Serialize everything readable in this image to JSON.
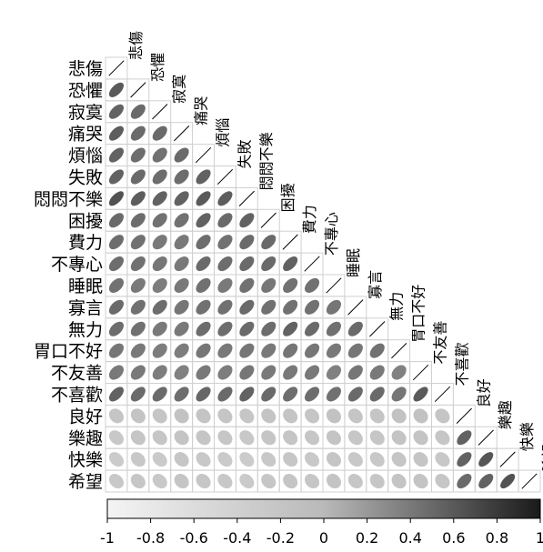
{
  "chart_data": {
    "type": "heatmap",
    "subtype": "correlation-ellipse-lower-triangle",
    "variables": [
      "悲傷",
      "恐懼",
      "寂寞",
      "痛哭",
      "煩惱",
      "失敗",
      "悶悶不樂",
      "困擾",
      "費力",
      "不專心",
      "睡眠",
      "寡言",
      "無力",
      "胃口不好",
      "不友善",
      "不喜歡",
      "良好",
      "樂趣",
      "快樂",
      "希望"
    ],
    "correlations": [
      [
        1
      ],
      [
        0.6,
        1
      ],
      [
        0.55,
        0.5,
        1
      ],
      [
        0.58,
        0.5,
        0.5,
        1
      ],
      [
        0.55,
        0.48,
        0.45,
        0.5,
        1
      ],
      [
        0.55,
        0.5,
        0.48,
        0.48,
        0.55,
        1
      ],
      [
        0.65,
        0.58,
        0.55,
        0.55,
        0.6,
        0.58,
        1
      ],
      [
        0.5,
        0.48,
        0.45,
        0.45,
        0.55,
        0.5,
        0.55,
        1
      ],
      [
        0.48,
        0.45,
        0.4,
        0.4,
        0.48,
        0.45,
        0.5,
        0.5,
        1
      ],
      [
        0.48,
        0.45,
        0.42,
        0.4,
        0.5,
        0.48,
        0.5,
        0.5,
        0.55,
        1
      ],
      [
        0.45,
        0.4,
        0.38,
        0.4,
        0.45,
        0.4,
        0.45,
        0.42,
        0.45,
        0.45,
        1
      ],
      [
        0.5,
        0.45,
        0.48,
        0.42,
        0.45,
        0.45,
        0.5,
        0.45,
        0.45,
        0.45,
        0.42,
        1
      ],
      [
        0.48,
        0.45,
        0.4,
        0.4,
        0.48,
        0.48,
        0.5,
        0.48,
        0.55,
        0.5,
        0.45,
        0.5,
        1
      ],
      [
        0.42,
        0.4,
        0.38,
        0.38,
        0.42,
        0.4,
        0.42,
        0.4,
        0.42,
        0.42,
        0.4,
        0.42,
        0.45,
        1
      ],
      [
        0.4,
        0.4,
        0.38,
        0.35,
        0.4,
        0.38,
        0.42,
        0.4,
        0.4,
        0.4,
        0.35,
        0.42,
        0.4,
        0.35,
        1
      ],
      [
        0.55,
        0.5,
        0.5,
        0.48,
        0.52,
        0.5,
        0.55,
        0.5,
        0.48,
        0.48,
        0.45,
        0.5,
        0.5,
        0.42,
        0.6,
        1
      ],
      [
        -0.2,
        -0.18,
        -0.2,
        -0.15,
        -0.18,
        -0.2,
        -0.22,
        -0.18,
        -0.18,
        -0.2,
        -0.15,
        -0.2,
        -0.2,
        -0.15,
        -0.15,
        -0.2,
        1
      ],
      [
        -0.25,
        -0.2,
        -0.22,
        -0.18,
        -0.2,
        -0.22,
        -0.25,
        -0.2,
        -0.2,
        -0.22,
        -0.18,
        -0.22,
        -0.22,
        -0.18,
        -0.18,
        -0.22,
        0.55,
        1
      ],
      [
        -0.3,
        -0.25,
        -0.28,
        -0.22,
        -0.25,
        -0.28,
        -0.3,
        -0.25,
        -0.22,
        -0.25,
        -0.2,
        -0.25,
        -0.25,
        -0.2,
        -0.2,
        -0.25,
        0.55,
        0.62,
        1
      ],
      [
        -0.25,
        -0.22,
        -0.25,
        -0.2,
        -0.22,
        -0.25,
        -0.28,
        -0.22,
        -0.2,
        -0.22,
        -0.18,
        -0.22,
        -0.22,
        -0.18,
        -0.18,
        -0.22,
        0.5,
        0.55,
        0.65,
        1
      ]
    ],
    "colorbar": {
      "range": [
        -1,
        1
      ],
      "ticks": [
        "-1",
        "-0.8",
        "-0.6",
        "-0.4",
        "-0.2",
        "0",
        "0.2",
        "0.4",
        "0.6",
        "0.8",
        "1"
      ]
    },
    "colors": {
      "negative_end": "#f4f4f4",
      "zero": "#b9b9b9",
      "positive_end": "#1a1a1a",
      "cell_border": "#d0d0d0"
    }
  }
}
